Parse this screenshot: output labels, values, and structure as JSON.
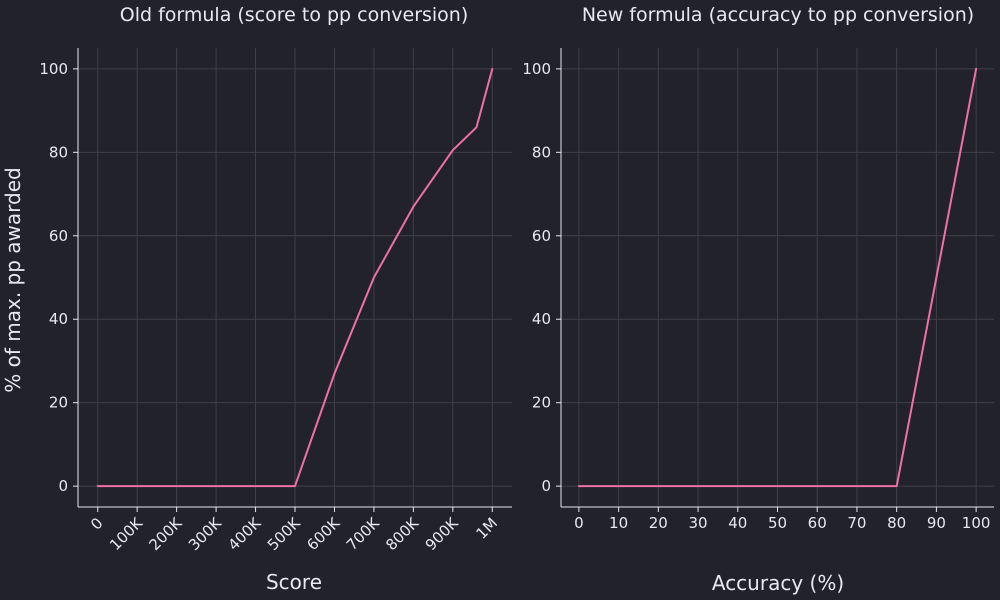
{
  "figure": {
    "background": "#22222a",
    "text_color": "#e8e8ee",
    "grid_color": "#3f3f49",
    "line_color": "#ef6fa8",
    "shared_ylabel": "% of max. pp awarded"
  },
  "chart_data": [
    {
      "type": "line",
      "title": "Old formula (score to pp conversion)",
      "xlabel": "Score",
      "ylabel": "% of max. pp awarded",
      "xlim": [
        -50000,
        1050000
      ],
      "ylim": [
        -5,
        105
      ],
      "grid": true,
      "x_ticks": [
        {
          "value": 0,
          "label": "0"
        },
        {
          "value": 100000,
          "label": "100K"
        },
        {
          "value": 200000,
          "label": "200K"
        },
        {
          "value": 300000,
          "label": "300K"
        },
        {
          "value": 400000,
          "label": "400K"
        },
        {
          "value": 500000,
          "label": "500K"
        },
        {
          "value": 600000,
          "label": "600K"
        },
        {
          "value": 700000,
          "label": "700K"
        },
        {
          "value": 800000,
          "label": "800K"
        },
        {
          "value": 900000,
          "label": "900K"
        },
        {
          "value": 1000000,
          "label": "1M"
        }
      ],
      "x_tick_rotation": -45,
      "y_ticks": [
        {
          "value": 0,
          "label": "0"
        },
        {
          "value": 20,
          "label": "20"
        },
        {
          "value": 40,
          "label": "40"
        },
        {
          "value": 60,
          "label": "60"
        },
        {
          "value": 80,
          "label": "80"
        },
        {
          "value": 100,
          "label": "100"
        }
      ],
      "series": [
        {
          "color": "#ef6fa8",
          "x": [
            0,
            500000,
            600000,
            700000,
            800000,
            900000,
            960000,
            980000,
            1000000
          ],
          "y": [
            0,
            0,
            27,
            50,
            67,
            80.5,
            86,
            93,
            100
          ]
        }
      ]
    },
    {
      "type": "line",
      "title": "New formula (accuracy to pp conversion)",
      "xlabel": "Accuracy (%)",
      "ylabel": "",
      "xlim": [
        -4.5,
        104.5
      ],
      "ylim": [
        -5,
        105
      ],
      "grid": true,
      "x_ticks": [
        {
          "value": 0,
          "label": "0"
        },
        {
          "value": 10,
          "label": "10"
        },
        {
          "value": 20,
          "label": "20"
        },
        {
          "value": 30,
          "label": "30"
        },
        {
          "value": 40,
          "label": "40"
        },
        {
          "value": 50,
          "label": "50"
        },
        {
          "value": 60,
          "label": "60"
        },
        {
          "value": 70,
          "label": "70"
        },
        {
          "value": 80,
          "label": "80"
        },
        {
          "value": 90,
          "label": "90"
        },
        {
          "value": 100,
          "label": "100"
        }
      ],
      "x_tick_rotation": 0,
      "y_ticks": [
        {
          "value": 0,
          "label": "0"
        },
        {
          "value": 20,
          "label": "20"
        },
        {
          "value": 40,
          "label": "40"
        },
        {
          "value": 60,
          "label": "60"
        },
        {
          "value": 80,
          "label": "80"
        },
        {
          "value": 100,
          "label": "100"
        }
      ],
      "series": [
        {
          "color": "#ef6fa8",
          "x": [
            0,
            80,
            100
          ],
          "y": [
            0,
            0,
            100
          ]
        }
      ]
    }
  ]
}
